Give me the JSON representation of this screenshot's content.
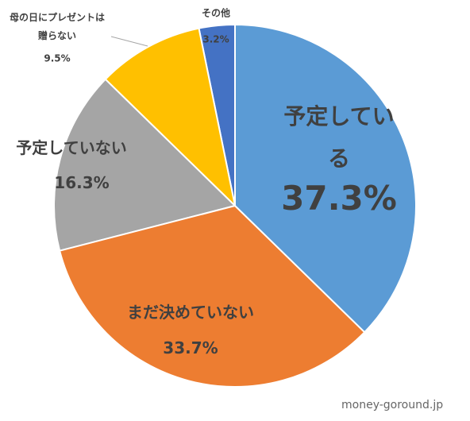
{
  "chart_data": {
    "type": "pie",
    "categories": [
      "予定している",
      "まだ決めていない",
      "予定していない",
      "母の日にプレゼントは\n贈らない",
      "その他"
    ],
    "values": [
      37.3,
      33.7,
      16.3,
      9.5,
      3.2
    ],
    "value_labels": [
      "37.3%",
      "33.7%",
      "16.3%",
      "9.5%",
      "3.2%"
    ],
    "colors": [
      "#5b9bd5",
      "#ed7d31",
      "#a5a5a5",
      "#ffc000",
      "#4472c4"
    ],
    "watermark": "money-goround.jp"
  }
}
